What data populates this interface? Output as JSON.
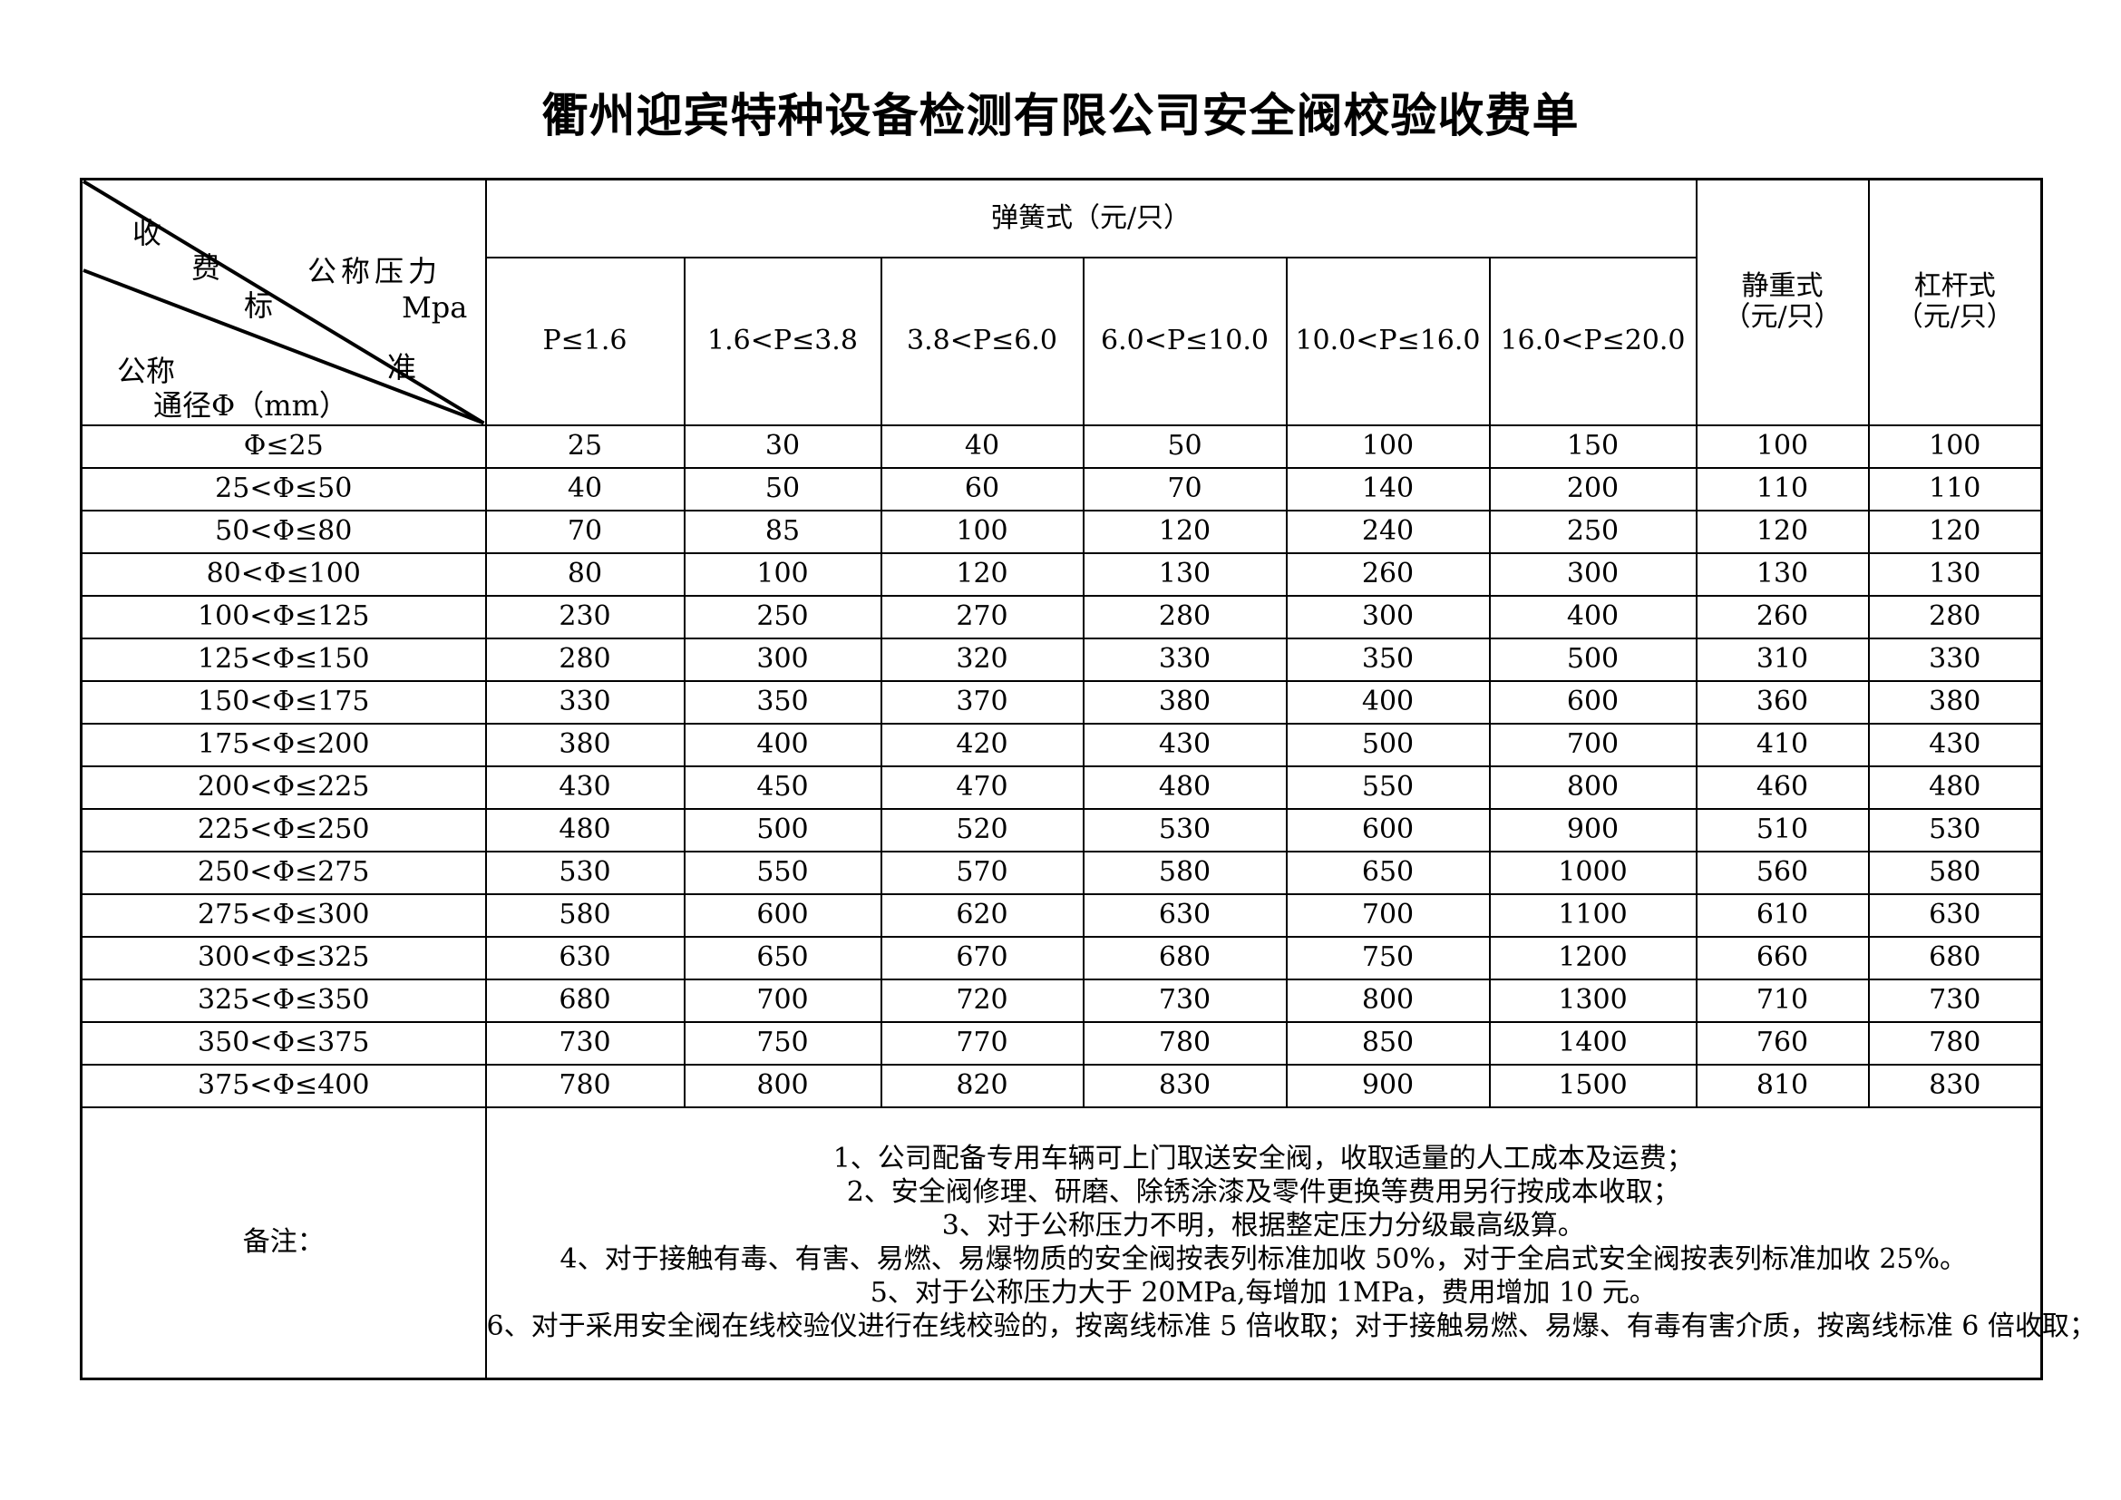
{
  "title": "衢州迎宾特种设备检测有限公司安全阀校验收费单",
  "table": {
    "corner": {
      "fee_chars": [
        "收",
        "费",
        "标",
        "准"
      ],
      "pressure_label": "公称压力",
      "pressure_unit": "Mpa",
      "diameter_label_line1": "公称",
      "diameter_label_line2": "通径Φ（mm）"
    },
    "spring_header": "弹簧式（元/只）",
    "pressure_cols": [
      "P≤1.6",
      "1.6<P≤3.8",
      "3.8<P≤6.0",
      "6.0<P≤10.0",
      "10.0<P≤16.0",
      "16.0<P≤20.0"
    ],
    "static_header": {
      "line1": "静重式",
      "line2": "（元/只）"
    },
    "lever_header": {
      "line1": "杠杆式",
      "line2": "（元/只）"
    },
    "rows": [
      {
        "label": "Φ≤25",
        "values": [
          25,
          30,
          40,
          50,
          100,
          150,
          100,
          100
        ]
      },
      {
        "label": "25<Φ≤50",
        "values": [
          40,
          50,
          60,
          70,
          140,
          200,
          110,
          110
        ]
      },
      {
        "label": "50<Φ≤80",
        "values": [
          70,
          85,
          100,
          120,
          240,
          250,
          120,
          120
        ]
      },
      {
        "label": "80<Φ≤100",
        "values": [
          80,
          100,
          120,
          130,
          260,
          300,
          130,
          130
        ]
      },
      {
        "label": "100<Φ≤125",
        "values": [
          230,
          250,
          270,
          280,
          300,
          400,
          260,
          280
        ]
      },
      {
        "label": "125<Φ≤150",
        "values": [
          280,
          300,
          320,
          330,
          350,
          500,
          310,
          330
        ]
      },
      {
        "label": "150<Φ≤175",
        "values": [
          330,
          350,
          370,
          380,
          400,
          600,
          360,
          380
        ]
      },
      {
        "label": "175<Φ≤200",
        "values": [
          380,
          400,
          420,
          430,
          500,
          700,
          410,
          430
        ]
      },
      {
        "label": "200<Φ≤225",
        "values": [
          430,
          450,
          470,
          480,
          550,
          800,
          460,
          480
        ]
      },
      {
        "label": "225<Φ≤250",
        "values": [
          480,
          500,
          520,
          530,
          600,
          900,
          510,
          530
        ]
      },
      {
        "label": "250<Φ≤275",
        "values": [
          530,
          550,
          570,
          580,
          650,
          1000,
          560,
          580
        ]
      },
      {
        "label": "275<Φ≤300",
        "values": [
          580,
          600,
          620,
          630,
          700,
          1100,
          610,
          630
        ]
      },
      {
        "label": "300<Φ≤325",
        "values": [
          630,
          650,
          670,
          680,
          750,
          1200,
          660,
          680
        ]
      },
      {
        "label": "325<Φ≤350",
        "values": [
          680,
          700,
          720,
          730,
          800,
          1300,
          710,
          730
        ]
      },
      {
        "label": "350<Φ≤375",
        "values": [
          730,
          750,
          770,
          780,
          850,
          1400,
          760,
          780
        ]
      },
      {
        "label": "375<Φ≤400",
        "values": [
          780,
          800,
          820,
          830,
          900,
          1500,
          810,
          830
        ]
      }
    ],
    "remarks_label": "备注：",
    "remarks": [
      "1、公司配备专用车辆可上门取送安全阀，收取适量的人工成本及运费；",
      "2、安全阀修理、研磨、除锈涂漆及零件更换等费用另行按成本收取；",
      "3、对于公称压力不明，根据整定压力分级最高级算。",
      "4、对于接触有毒、有害、易燃、易爆物质的安全阀按表列标准加收 50%，对于全启式安全阀按表列标准加收 25%。",
      "5、对于公称压力大于 20MPa,每增加 1MPa，费用增加 10 元。",
      "6、对于采用安全阀在线校验仪进行在线校验的，按离线标准 5 倍收取；对于接触易燃、易爆、有毒有害介质，按离线标准 6 倍收取；"
    ]
  }
}
